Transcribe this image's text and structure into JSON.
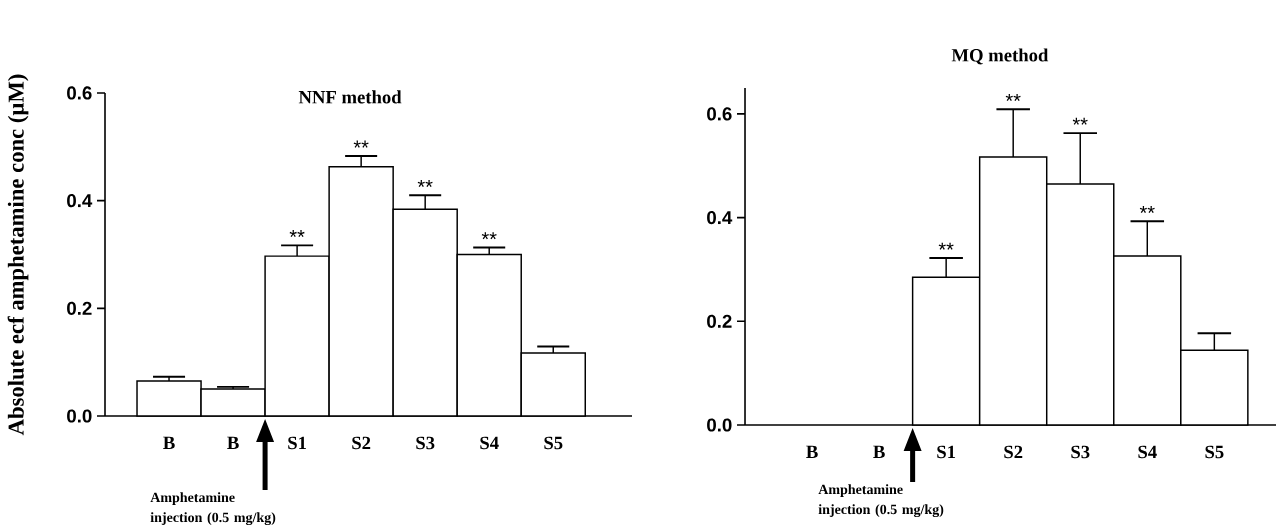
{
  "chart_data": [
    {
      "type": "bar",
      "title": "NNF method",
      "ylabel": "Absolute ecf amphetamine conc (µM)",
      "categories": [
        "B",
        "B",
        "S1",
        "S2",
        "S3",
        "S4",
        "S5"
      ],
      "values": [
        0.065,
        0.05,
        0.297,
        0.463,
        0.384,
        0.3,
        0.117
      ],
      "errors": [
        0.008,
        0.004,
        0.02,
        0.02,
        0.026,
        0.013,
        0.012
      ],
      "value_labels": [
        null,
        null,
        "**",
        "**",
        "**",
        "**",
        null
      ],
      "color": "#ffffff",
      "ylim": [
        0,
        0.6
      ],
      "yticks": [
        {
          "value": 0,
          "label": "0.0"
        },
        {
          "value": 0.2,
          "label": "0.2"
        },
        {
          "value": 0.4,
          "label": "0.4"
        },
        {
          "value": 0.6,
          "label": "0.6"
        }
      ],
      "annotations": [
        "Amphetamine injection (0.5 mg/kg)"
      ]
    },
    {
      "type": "bar",
      "title": "MQ method",
      "categories": [
        "B",
        "B",
        "S1",
        "S2",
        "S3",
        "S4",
        "S5"
      ],
      "values": [
        null,
        null,
        0.285,
        0.517,
        0.465,
        0.326,
        0.144
      ],
      "errors": [
        null,
        null,
        0.037,
        0.092,
        0.098,
        0.067,
        0.033
      ],
      "value_labels": [
        null,
        null,
        "**",
        "**",
        "**",
        "**",
        null
      ],
      "color": "#ffffff",
      "ylim": [
        0,
        0.65
      ],
      "yticks": [
        {
          "value": 0,
          "label": "0.0"
        },
        {
          "value": 0.2,
          "label": "0.2"
        },
        {
          "value": 0.4,
          "label": "0.4"
        },
        {
          "value": 0.6,
          "label": "0.6"
        }
      ],
      "annotations": [
        "Amphetamine injection (0.5 mg/kg)"
      ]
    }
  ]
}
